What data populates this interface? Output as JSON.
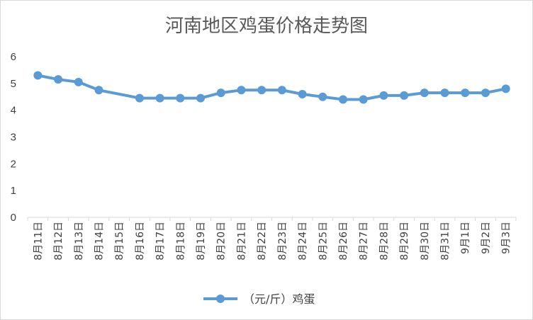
{
  "chart_data": {
    "type": "line",
    "title": "河南地区鸡蛋价格走势图",
    "xlabel": "",
    "ylabel": "",
    "ylim": [
      0,
      6
    ],
    "yticks": [
      "0",
      "1",
      "2",
      "3",
      "4",
      "5",
      "6"
    ],
    "grid": false,
    "legend_position": "bottom",
    "categories": [
      "8月11日",
      "8月12日",
      "8月13日",
      "8月14日",
      "8月15日",
      "8月16日",
      "8月17日",
      "8月18日",
      "8月19日",
      "8月20日",
      "8月21日",
      "8月22日",
      "8月23日",
      "8月24日",
      "8月25日",
      "8月26日",
      "8月27日",
      "8月28日",
      "8月29日",
      "8月30日",
      "8月31日",
      "9月1日",
      "9月2日",
      "9月3日"
    ],
    "series": [
      {
        "name": "（元/斤）鸡蛋",
        "color": "#5b9bd5",
        "values": [
          5.3,
          5.15,
          5.05,
          4.75,
          null,
          4.45,
          4.45,
          4.45,
          4.45,
          4.65,
          4.75,
          4.75,
          4.75,
          4.6,
          4.5,
          4.4,
          4.4,
          4.55,
          4.55,
          4.65,
          4.65,
          4.65,
          4.65,
          4.8
        ]
      }
    ]
  }
}
